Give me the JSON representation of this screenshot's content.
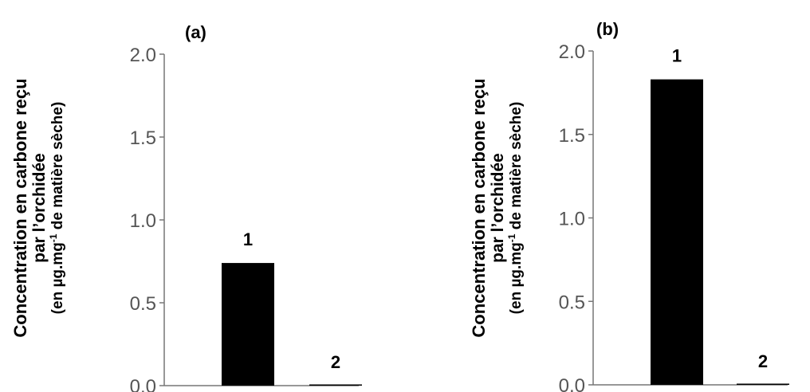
{
  "chart_data": [
    {
      "type": "bar",
      "title": "(a)",
      "categories": [
        "1",
        "2"
      ],
      "values": [
        0.74,
        0.0
      ],
      "ylabel": {
        "line1": "Concentration en carbone reçu",
        "line2": "par l’orchidée",
        "line3_pre": "(en µg.mg",
        "line3_sup": "-1",
        "line3_post": " de matière sèche)"
      },
      "ylim": [
        0,
        2.0
      ],
      "yticks": [
        "0.0",
        "0.5",
        "1.0",
        "1.5",
        "2.0"
      ],
      "grid": false,
      "colors": [
        "#000000",
        "#000000"
      ]
    },
    {
      "type": "bar",
      "title": "(b)",
      "categories": [
        "1",
        "2"
      ],
      "values": [
        1.83,
        0.0
      ],
      "ylabel": {
        "line1": "Concentration en carbone reçu",
        "line2": "par l’orchidée",
        "line3_pre": "(en µg.mg",
        "line3_sup": "-1",
        "line3_post": " de matière sèche)"
      },
      "ylim": [
        0,
        2.0
      ],
      "yticks": [
        "0.0",
        "0.5",
        "1.0",
        "1.5",
        "2.0"
      ],
      "grid": false,
      "colors": [
        "#000000",
        "#000000"
      ]
    }
  ]
}
